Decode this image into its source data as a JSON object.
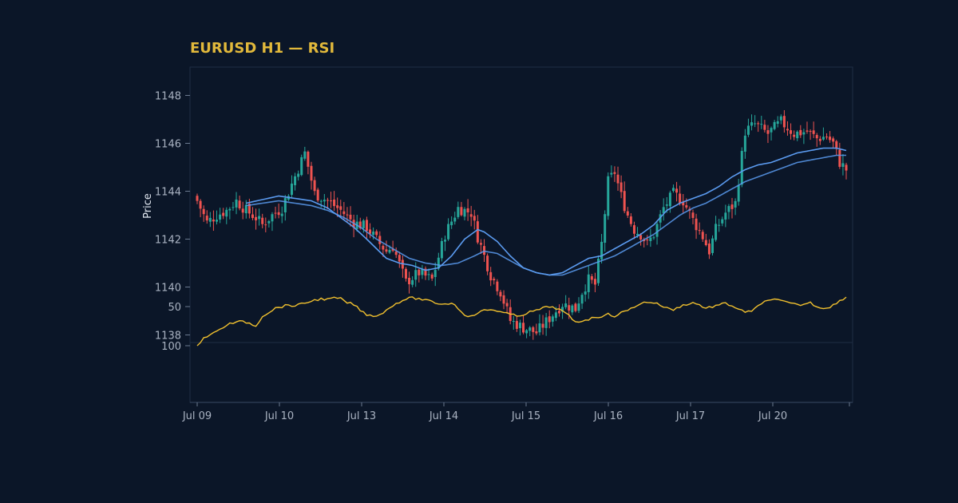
{
  "chart_data": {
    "type": "candlestick",
    "title": "EURUSD H1 — RSI",
    "ylabel": "Price",
    "price_ylim": [
      1137.5,
      1149
    ],
    "price_yticks": [
      1138,
      1140,
      1142,
      1144,
      1146,
      1148
    ],
    "rsi_ylim": [
      33,
      100
    ],
    "rsi_yticks": [
      50,
      100
    ],
    "x_tick_labels": [
      "Jul 09",
      "Jul 10",
      "Jul 13",
      "Jul 14",
      "Jul 15",
      "Jul 16",
      "Jul 17",
      "Jul 20"
    ],
    "n_bars": 200,
    "colors": {
      "up": "#26a69a",
      "down": "#ef5350",
      "ma_fast": "#5b9bf0",
      "ma_slow": "#5b9bf0",
      "rsi": "#f2c12e"
    },
    "close_anchors": [
      [
        0,
        1143.6
      ],
      [
        3,
        1142.7
      ],
      [
        6,
        1143.0
      ],
      [
        9,
        1143.2
      ],
      [
        12,
        1143.6
      ],
      [
        15,
        1143.2
      ],
      [
        18,
        1142.9
      ],
      [
        20,
        1142.6
      ],
      [
        23,
        1143.0
      ],
      [
        26,
        1143.3
      ],
      [
        29,
        1144.3
      ],
      [
        33,
        1145.6
      ],
      [
        36,
        1143.9
      ],
      [
        40,
        1143.6
      ],
      [
        44,
        1143.2
      ],
      [
        48,
        1142.7
      ],
      [
        52,
        1142.5
      ],
      [
        56,
        1141.8
      ],
      [
        58,
        1141.5
      ],
      [
        60,
        1141.7
      ],
      [
        64,
        1140.2
      ],
      [
        68,
        1140.6
      ],
      [
        72,
        1140.3
      ],
      [
        76,
        1142.2
      ],
      [
        80,
        1143.3
      ],
      [
        84,
        1143.1
      ],
      [
        86,
        1142.1
      ],
      [
        88,
        1141.3
      ],
      [
        90,
        1140.5
      ],
      [
        93,
        1139.8
      ],
      [
        96,
        1138.6
      ],
      [
        100,
        1138.3
      ],
      [
        104,
        1138.1
      ],
      [
        108,
        1138.7
      ],
      [
        112,
        1139.3
      ],
      [
        116,
        1139.1
      ],
      [
        118,
        1139.8
      ],
      [
        120,
        1140.3
      ],
      [
        122,
        1140.1
      ],
      [
        124,
        1141.8
      ],
      [
        126,
        1144.4
      ],
      [
        128,
        1144.8
      ],
      [
        130,
        1143.8
      ],
      [
        132,
        1143.0
      ],
      [
        134,
        1142.4
      ],
      [
        136,
        1142.2
      ],
      [
        138,
        1141.8
      ],
      [
        140,
        1142.2
      ],
      [
        143,
        1143.3
      ],
      [
        146,
        1143.9
      ],
      [
        149,
        1143.6
      ],
      [
        152,
        1142.8
      ],
      [
        155,
        1142.1
      ],
      [
        157,
        1141.5
      ],
      [
        159,
        1142.4
      ],
      [
        162,
        1143.1
      ],
      [
        165,
        1143.5
      ],
      [
        168,
        1146.5
      ],
      [
        171,
        1146.8
      ],
      [
        175,
        1146.4
      ],
      [
        179,
        1146.9
      ],
      [
        183,
        1146.4
      ],
      [
        187,
        1146.5
      ],
      [
        190,
        1146.2
      ],
      [
        193,
        1146.3
      ],
      [
        195,
        1146.0
      ],
      [
        197,
        1145.2
      ],
      [
        199,
        1144.9
      ]
    ],
    "ma_fast_anchors": [
      [
        15,
        1143.5
      ],
      [
        25,
        1143.8
      ],
      [
        30,
        1143.7
      ],
      [
        35,
        1143.6
      ],
      [
        40,
        1143.3
      ],
      [
        45,
        1142.8
      ],
      [
        48,
        1142.5
      ],
      [
        52,
        1142.0
      ],
      [
        55,
        1141.6
      ],
      [
        58,
        1141.2
      ],
      [
        62,
        1141.0
      ],
      [
        66,
        1140.9
      ],
      [
        70,
        1140.7
      ],
      [
        74,
        1140.8
      ],
      [
        78,
        1141.3
      ],
      [
        82,
        1142.0
      ],
      [
        86,
        1142.4
      ],
      [
        88,
        1142.3
      ],
      [
        92,
        1141.9
      ],
      [
        96,
        1141.3
      ],
      [
        100,
        1140.8
      ],
      [
        104,
        1140.6
      ],
      [
        108,
        1140.5
      ],
      [
        112,
        1140.6
      ],
      [
        116,
        1140.9
      ],
      [
        120,
        1141.2
      ],
      [
        124,
        1141.3
      ],
      [
        128,
        1141.6
      ],
      [
        132,
        1141.9
      ],
      [
        136,
        1142.2
      ],
      [
        140,
        1142.6
      ],
      [
        144,
        1143.2
      ],
      [
        148,
        1143.5
      ],
      [
        152,
        1143.7
      ],
      [
        156,
        1143.9
      ],
      [
        160,
        1144.2
      ],
      [
        164,
        1144.6
      ],
      [
        168,
        1144.9
      ],
      [
        172,
        1145.1
      ],
      [
        176,
        1145.2
      ],
      [
        180,
        1145.4
      ],
      [
        184,
        1145.6
      ],
      [
        188,
        1145.7
      ],
      [
        192,
        1145.8
      ],
      [
        196,
        1145.8
      ],
      [
        199,
        1145.7
      ]
    ],
    "ma_slow_anchors": [
      [
        15,
        1143.4
      ],
      [
        25,
        1143.6
      ],
      [
        30,
        1143.5
      ],
      [
        35,
        1143.4
      ],
      [
        40,
        1143.2
      ],
      [
        45,
        1142.9
      ],
      [
        50,
        1142.5
      ],
      [
        55,
        1142.0
      ],
      [
        60,
        1141.6
      ],
      [
        65,
        1141.2
      ],
      [
        70,
        1141.0
      ],
      [
        75,
        1140.9
      ],
      [
        80,
        1141.0
      ],
      [
        85,
        1141.3
      ],
      [
        88,
        1141.5
      ],
      [
        92,
        1141.4
      ],
      [
        96,
        1141.1
      ],
      [
        100,
        1140.8
      ],
      [
        104,
        1140.6
      ],
      [
        108,
        1140.5
      ],
      [
        112,
        1140.5
      ],
      [
        116,
        1140.7
      ],
      [
        120,
        1140.9
      ],
      [
        124,
        1141.1
      ],
      [
        128,
        1141.3
      ],
      [
        132,
        1141.6
      ],
      [
        136,
        1141.9
      ],
      [
        140,
        1142.2
      ],
      [
        144,
        1142.6
      ],
      [
        148,
        1143.0
      ],
      [
        152,
        1143.3
      ],
      [
        156,
        1143.5
      ],
      [
        160,
        1143.8
      ],
      [
        164,
        1144.1
      ],
      [
        168,
        1144.4
      ],
      [
        172,
        1144.6
      ],
      [
        176,
        1144.8
      ],
      [
        180,
        1145.0
      ],
      [
        184,
        1145.2
      ],
      [
        188,
        1145.3
      ],
      [
        192,
        1145.4
      ],
      [
        196,
        1145.5
      ],
      [
        199,
        1145.5
      ]
    ],
    "rsi_anchors": [
      [
        0,
        100
      ],
      [
        2,
        90
      ],
      [
        4,
        86
      ],
      [
        6,
        82
      ],
      [
        8,
        76
      ],
      [
        10,
        72
      ],
      [
        12,
        70
      ],
      [
        14,
        69
      ],
      [
        16,
        71
      ],
      [
        18,
        75
      ],
      [
        20,
        62
      ],
      [
        22,
        57
      ],
      [
        24,
        52
      ],
      [
        26,
        50
      ],
      [
        28,
        48
      ],
      [
        30,
        49
      ],
      [
        32,
        47
      ],
      [
        34,
        44
      ],
      [
        36,
        42
      ],
      [
        38,
        40
      ],
      [
        40,
        41
      ],
      [
        42,
        39
      ],
      [
        44,
        40
      ],
      [
        46,
        45
      ],
      [
        48,
        47
      ],
      [
        50,
        55
      ],
      [
        52,
        60
      ],
      [
        54,
        62
      ],
      [
        56,
        60
      ],
      [
        58,
        55
      ],
      [
        60,
        48
      ],
      [
        62,
        44
      ],
      [
        64,
        40
      ],
      [
        66,
        39
      ],
      [
        68,
        40
      ],
      [
        70,
        42
      ],
      [
        72,
        44
      ],
      [
        74,
        46
      ],
      [
        76,
        47
      ],
      [
        78,
        45
      ],
      [
        80,
        52
      ],
      [
        82,
        60
      ],
      [
        84,
        63
      ],
      [
        86,
        58
      ],
      [
        88,
        55
      ],
      [
        90,
        54
      ],
      [
        92,
        55
      ],
      [
        94,
        58
      ],
      [
        96,
        60
      ],
      [
        98,
        62
      ],
      [
        100,
        60
      ],
      [
        102,
        57
      ],
      [
        104,
        55
      ],
      [
        106,
        52
      ],
      [
        108,
        50
      ],
      [
        110,
        52
      ],
      [
        112,
        56
      ],
      [
        114,
        62
      ],
      [
        116,
        70
      ],
      [
        118,
        68
      ],
      [
        120,
        66
      ],
      [
        122,
        64
      ],
      [
        124,
        62
      ],
      [
        126,
        60
      ],
      [
        128,
        62
      ],
      [
        130,
        58
      ],
      [
        132,
        55
      ],
      [
        134,
        50
      ],
      [
        136,
        46
      ],
      [
        138,
        44
      ],
      [
        140,
        45
      ],
      [
        142,
        48
      ],
      [
        144,
        52
      ],
      [
        146,
        54
      ],
      [
        148,
        50
      ],
      [
        150,
        47
      ],
      [
        152,
        45
      ],
      [
        154,
        48
      ],
      [
        156,
        52
      ],
      [
        158,
        50
      ],
      [
        160,
        48
      ],
      [
        162,
        46
      ],
      [
        164,
        49
      ],
      [
        166,
        53
      ],
      [
        168,
        58
      ],
      [
        170,
        55
      ],
      [
        172,
        50
      ],
      [
        174,
        44
      ],
      [
        176,
        40
      ],
      [
        178,
        42
      ],
      [
        180,
        44
      ],
      [
        182,
        46
      ],
      [
        184,
        48
      ],
      [
        186,
        47
      ],
      [
        188,
        45
      ],
      [
        190,
        50
      ],
      [
        192,
        52
      ],
      [
        194,
        50
      ],
      [
        196,
        46
      ],
      [
        198,
        40
      ],
      [
        199,
        38
      ]
    ]
  }
}
